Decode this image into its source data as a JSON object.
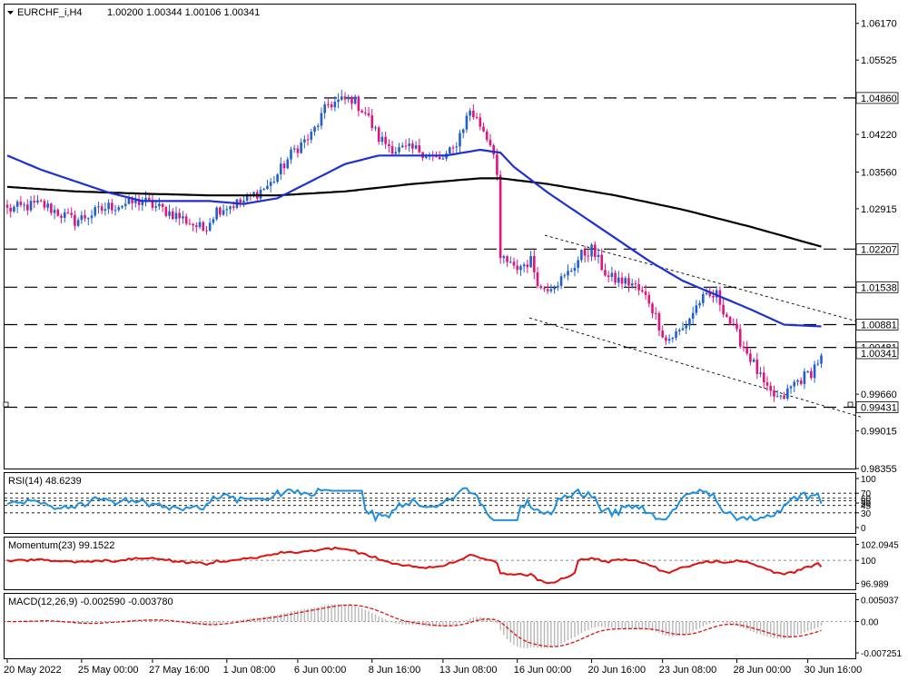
{
  "header": {
    "symbol": "EURCHF_i,H4",
    "ohlc": "1.00200 1.00344 1.00106 1.00341"
  },
  "chart_data": [
    {
      "type": "candlestick",
      "yticks": [
        "1.06170",
        "1.05525",
        "1.04220",
        "1.03560",
        "1.02915",
        "0.99660",
        "0.99015",
        "0.98355"
      ],
      "ylim": [
        0.98355,
        1.065
      ],
      "levels": [
        {
          "value": 1.0486,
          "label": "1.04860"
        },
        {
          "value": 1.02207,
          "label": "1.02207"
        },
        {
          "value": 1.01538,
          "label": "1.01538"
        },
        {
          "value": 1.00881,
          "label": "1.00881"
        },
        {
          "value": 1.00481,
          "label": "1.00481"
        },
        {
          "value": 0.99431,
          "label": "0.99431"
        }
      ],
      "price_label": {
        "value": 1.00341,
        "label": "1.00341"
      },
      "xticks": [
        "20 May 2022",
        "25 May 00:00",
        "27 May 16:00",
        "1 Jun 08:00",
        "6 Jun 00:00",
        "8 Jun 16:00",
        "13 Jun 08:00",
        "16 Jun 00:00",
        "20 Jun 16:00",
        "23 Jun 08:00",
        "28 Jun 00:00",
        "30 Jun 16:00"
      ],
      "anchors": [
        [
          0,
          1.029
        ],
        [
          10,
          1.03
        ],
        [
          20,
          1.027
        ],
        [
          30,
          1.0295
        ],
        [
          40,
          1.0305
        ],
        [
          50,
          1.028
        ],
        [
          58,
          1.0255
        ],
        [
          62,
          1.029
        ],
        [
          70,
          1.0305
        ],
        [
          78,
          1.0335
        ],
        [
          85,
          1.0395
        ],
        [
          90,
          1.042
        ],
        [
          95,
          1.0475
        ],
        [
          102,
          1.0485
        ],
        [
          106,
          1.046
        ],
        [
          110,
          1.0415
        ],
        [
          115,
          1.0395
        ],
        [
          122,
          1.0395
        ],
        [
          128,
          1.0375
        ],
        [
          132,
          1.0395
        ],
        [
          137,
          1.0465
        ],
        [
          141,
          1.043
        ],
        [
          144,
          1.0395
        ],
        [
          145,
          1.035
        ],
        [
          146,
          1.021
        ],
        [
          150,
          1.0185
        ],
        [
          155,
          1.02
        ],
        [
          158,
          1.015
        ],
        [
          165,
          1.017
        ],
        [
          170,
          1.021
        ],
        [
          173,
          1.022
        ],
        [
          178,
          1.017
        ],
        [
          185,
          1.016
        ],
        [
          190,
          1.013
        ],
        [
          195,
          1.006
        ],
        [
          200,
          1.008
        ],
        [
          205,
          1.013
        ],
        [
          210,
          1.014
        ],
        [
          215,
          1.008
        ],
        [
          220,
          1.003
        ],
        [
          225,
          0.997
        ],
        [
          229,
          0.9955
        ],
        [
          233,
          0.9985
        ],
        [
          238,
          1.0005
        ],
        [
          241,
          1.0034
        ]
      ],
      "sma_fast": [
        [
          0,
          1.0385
        ],
        [
          10,
          1.036
        ],
        [
          20,
          1.034
        ],
        [
          30,
          1.032
        ],
        [
          40,
          1.0305
        ],
        [
          50,
          1.0305
        ],
        [
          60,
          1.0305
        ],
        [
          70,
          1.03
        ],
        [
          80,
          1.031
        ],
        [
          90,
          1.034
        ],
        [
          100,
          1.037
        ],
        [
          110,
          1.0385
        ],
        [
          120,
          1.0385
        ],
        [
          130,
          1.0385
        ],
        [
          140,
          1.0395
        ],
        [
          146,
          1.039
        ],
        [
          150,
          1.0365
        ],
        [
          160,
          1.032
        ],
        [
          170,
          1.028
        ],
        [
          180,
          1.024
        ],
        [
          190,
          1.02
        ],
        [
          200,
          1.0165
        ],
        [
          210,
          1.014
        ],
        [
          220,
          1.0115
        ],
        [
          230,
          1.0088
        ],
        [
          241,
          1.0085
        ]
      ],
      "sma_slow": [
        [
          0,
          1.033
        ],
        [
          20,
          1.0322
        ],
        [
          40,
          1.0318
        ],
        [
          60,
          1.0315
        ],
        [
          80,
          1.0315
        ],
        [
          100,
          1.0322
        ],
        [
          120,
          1.0335
        ],
        [
          140,
          1.0345
        ],
        [
          146,
          1.0345
        ],
        [
          160,
          1.0335
        ],
        [
          180,
          1.0315
        ],
        [
          200,
          1.029
        ],
        [
          220,
          1.026
        ],
        [
          241,
          1.0225
        ]
      ],
      "channel": {
        "upper": [
          [
            600,
            1.0245
          ],
          [
            975,
            1.008
          ]
        ],
        "lower": [
          [
            583,
            1.01
          ],
          [
            950,
            0.9925
          ]
        ]
      }
    },
    {
      "type": "line",
      "title": "RSI(14) 48.6239",
      "yticks": [
        "100",
        "70",
        "50",
        "30",
        "0"
      ],
      "clutter_labels": [
        "45",
        "55",
        "60"
      ],
      "ylim": [
        0,
        100
      ],
      "levels": [
        70,
        60,
        55,
        45,
        30
      ]
    },
    {
      "type": "line",
      "title": "Momentum(23) 99.1522",
      "yticks": [
        "102.0945",
        "100",
        "96.989"
      ],
      "ylim": [
        96.2,
        103.0
      ],
      "level": 100
    },
    {
      "type": "bar",
      "title": "MACD(12,26,9) -0.002590 -0.003780",
      "yticks": [
        "0.005037",
        "0.00",
        "-0.007251"
      ],
      "ylim": [
        -0.0085,
        0.0064
      ]
    }
  ]
}
